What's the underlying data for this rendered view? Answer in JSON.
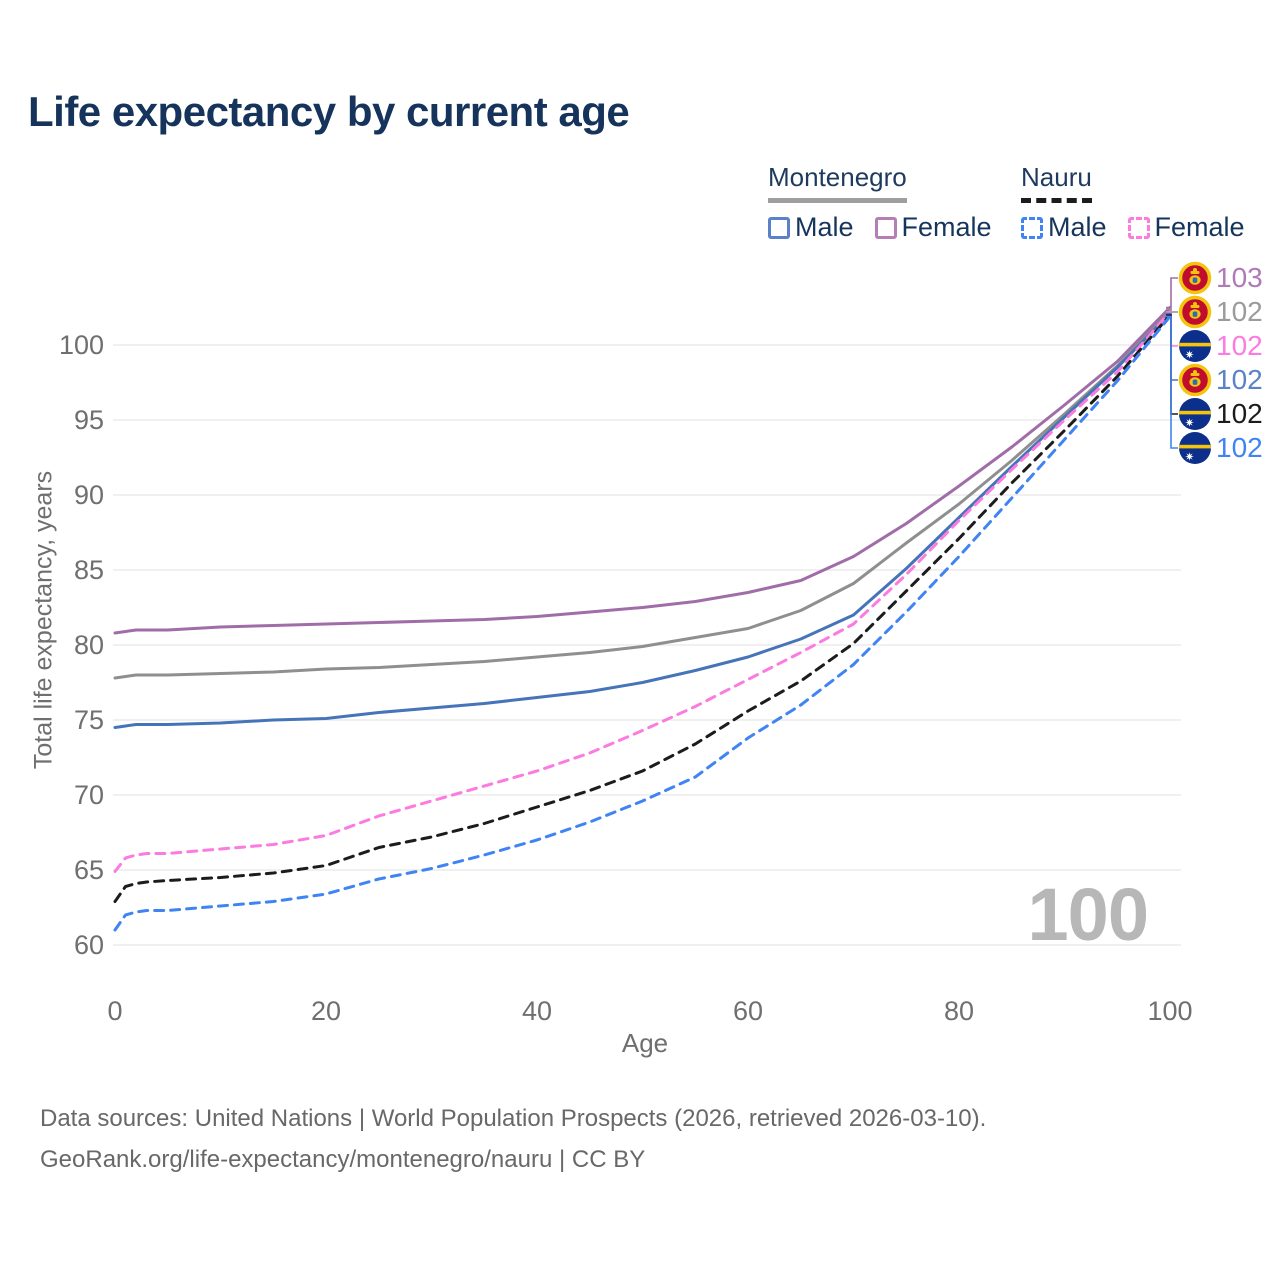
{
  "title": "Life expectancy by current age",
  "watermark_age": "100",
  "legend": {
    "groups": [
      {
        "label": "Montenegro",
        "underline_style": "solid",
        "underline_color": "#9e9e9e",
        "items": [
          {
            "label": "Male",
            "color": "#5b82c8",
            "dashed": false
          },
          {
            "label": "Female",
            "color": "#b57fb5",
            "dashed": false
          }
        ]
      },
      {
        "label": "Nauru",
        "underline_style": "dashed",
        "underline_color": "#1c1c1c",
        "items": [
          {
            "label": "Male",
            "color": "#4084f4",
            "dashed": true
          },
          {
            "label": "Female",
            "color": "#fb7be1",
            "dashed": true
          }
        ]
      }
    ]
  },
  "chart_data": {
    "type": "line",
    "title": "Life expectancy by current age",
    "xlabel": "Age",
    "ylabel": "Total life expectancy, years",
    "xlim": [
      0,
      100
    ],
    "ylim": [
      58,
      104
    ],
    "xticks": [
      0,
      20,
      40,
      60,
      80,
      100
    ],
    "yticks": [
      60,
      65,
      70,
      75,
      80,
      85,
      90,
      95,
      100
    ],
    "grid": "horizontal-only",
    "legend_position": "top-right",
    "x": [
      0,
      1,
      2,
      3,
      5,
      10,
      15,
      20,
      25,
      30,
      35,
      40,
      45,
      50,
      55,
      60,
      65,
      70,
      75,
      80,
      85,
      90,
      95,
      100
    ],
    "series": [
      {
        "id": "montenegro-both",
        "name": "Montenegro (both sexes)",
        "country": "Montenegro",
        "sex": "Both",
        "color": "#8f8f8f",
        "dashed": false,
        "flag": "montenegro",
        "values": [
          77.8,
          77.9,
          78.0,
          78.0,
          78.0,
          78.1,
          78.2,
          78.4,
          78.5,
          78.7,
          78.9,
          79.2,
          79.5,
          79.9,
          80.5,
          81.1,
          82.3,
          84.1,
          86.8,
          89.4,
          92.3,
          95.4,
          98.6,
          102.4
        ]
      },
      {
        "id": "montenegro-female",
        "name": "Montenegro Female",
        "country": "Montenegro",
        "sex": "Female",
        "color": "#a06da8",
        "dashed": false,
        "flag": "montenegro",
        "values": [
          80.8,
          80.9,
          81.0,
          81.0,
          81.0,
          81.2,
          81.3,
          81.4,
          81.5,
          81.6,
          81.7,
          81.9,
          82.2,
          82.5,
          82.9,
          83.5,
          84.3,
          85.9,
          88.1,
          90.6,
          93.2,
          96.0,
          98.9,
          102.5
        ]
      },
      {
        "id": "montenegro-male",
        "name": "Montenegro Male",
        "country": "Montenegro",
        "sex": "Male",
        "color": "#4674b9",
        "dashed": false,
        "flag": "montenegro",
        "values": [
          74.5,
          74.6,
          74.7,
          74.7,
          74.7,
          74.8,
          75.0,
          75.1,
          75.5,
          75.8,
          76.1,
          76.5,
          76.9,
          77.5,
          78.3,
          79.2,
          80.4,
          82.0,
          85.1,
          88.5,
          91.9,
          95.2,
          98.5,
          102.1
        ]
      },
      {
        "id": "nauru-female",
        "name": "Nauru Female",
        "country": "Nauru",
        "sex": "Female",
        "color": "#fb7be1",
        "dashed": true,
        "flag": "nauru",
        "values": [
          64.9,
          65.8,
          66.0,
          66.1,
          66.1,
          66.4,
          66.7,
          67.3,
          68.6,
          69.6,
          70.6,
          71.6,
          72.8,
          74.3,
          75.9,
          77.7,
          79.5,
          81.4,
          84.7,
          88.3,
          91.7,
          95.0,
          98.2,
          102.2
        ]
      },
      {
        "id": "nauru-both",
        "name": "Nauru (both sexes)",
        "country": "Nauru",
        "sex": "Both",
        "color": "#1c1c1c",
        "dashed": true,
        "flag": "nauru",
        "values": [
          62.9,
          63.9,
          64.1,
          64.2,
          64.3,
          64.5,
          64.8,
          65.3,
          66.5,
          67.2,
          68.1,
          69.2,
          70.3,
          71.6,
          73.4,
          75.6,
          77.6,
          80.1,
          83.6,
          87.1,
          90.8,
          94.3,
          97.9,
          102.0
        ]
      },
      {
        "id": "nauru-male",
        "name": "Nauru Male",
        "country": "Nauru",
        "sex": "Male",
        "color": "#4084f4",
        "dashed": true,
        "flag": "nauru",
        "values": [
          61.0,
          62.0,
          62.2,
          62.3,
          62.3,
          62.6,
          62.9,
          63.4,
          64.4,
          65.1,
          66.0,
          67.0,
          68.2,
          69.6,
          71.2,
          73.8,
          76.0,
          78.7,
          82.2,
          85.9,
          89.8,
          93.7,
          97.6,
          101.9
        ]
      }
    ]
  },
  "end_rows": [
    {
      "series": 1,
      "label": "103",
      "label_color": "#b07ab8"
    },
    {
      "series": 0,
      "label": "102",
      "label_color": "#9b9b9b"
    },
    {
      "series": 3,
      "label": "102",
      "label_color": "#fb7be1"
    },
    {
      "series": 2,
      "label": "102",
      "label_color": "#5b82c8"
    },
    {
      "series": 4,
      "label": "102",
      "label_color": "#1c1c1c"
    },
    {
      "series": 5,
      "label": "102",
      "label_color": "#4084f4"
    }
  ],
  "flag_colors": {
    "montenegro_red": "#c00c2d",
    "montenegro_gold": "#f4c40f",
    "nauru_blue": "#0b2f8a",
    "nauru_gold": "#f4c40f",
    "nauru_star": "#ffffff"
  },
  "footer": {
    "sources": "Data sources: United Nations | World Population Prospects (2026, retrieved 2026-03-10).",
    "link": "GeoRank.org/life-expectancy/montenegro/nauru",
    "suffix": " | CC BY"
  }
}
